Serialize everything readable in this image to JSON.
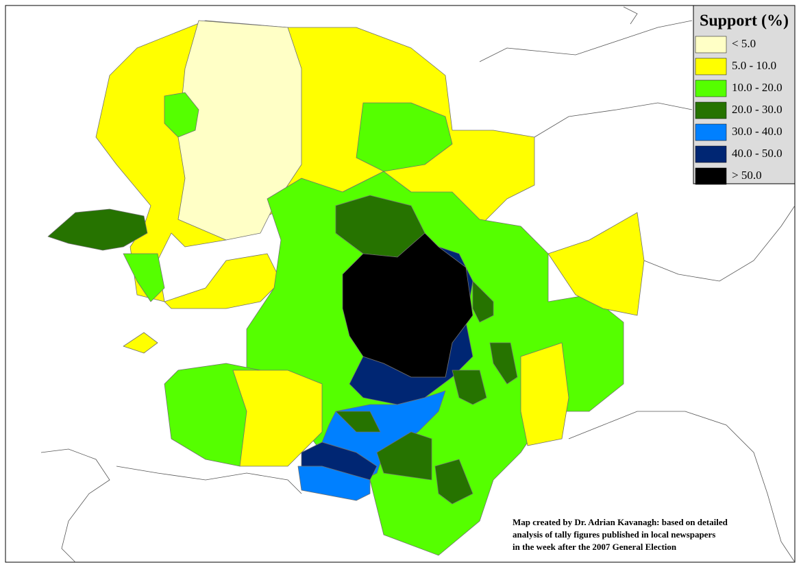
{
  "legend": {
    "title": "Support (%)",
    "items": [
      {
        "label": "< 5.0",
        "color": "#ffffc6"
      },
      {
        "label": "5.0 - 10.0",
        "color": "#ffff00"
      },
      {
        "label": "10.0 - 20.0",
        "color": "#55ff00"
      },
      {
        "label": "20.0 - 30.0",
        "color": "#267300"
      },
      {
        "label": "30.0 - 40.0",
        "color": "#0080ff"
      },
      {
        "label": "40.0 - 50.0",
        "color": "#002673"
      },
      {
        "label": "> 50.0",
        "color": "#000000"
      }
    ]
  },
  "credit": {
    "lines": [
      "Map created by Dr. Adrian Kavanagh: based on detailed",
      "analysis of tally figures published in local newspapers",
      "in the week after the 2007 General Election"
    ]
  }
}
